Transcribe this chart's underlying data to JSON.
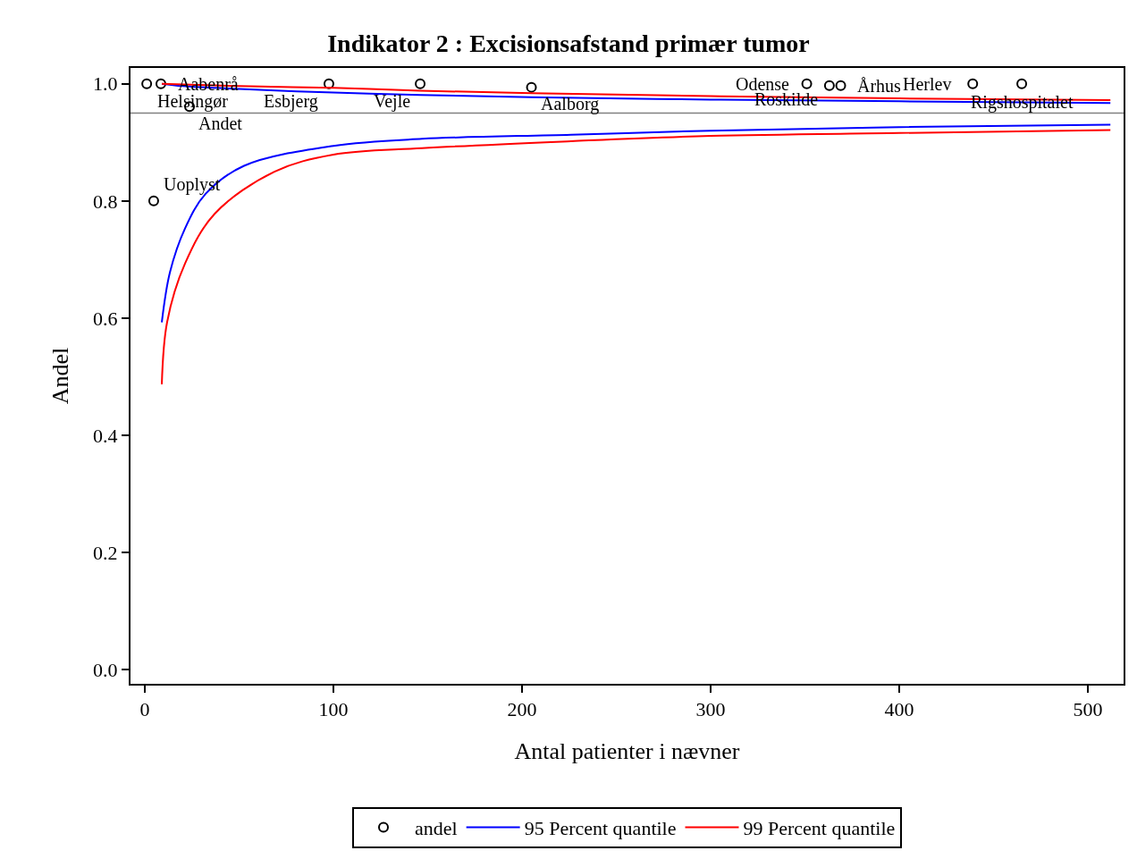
{
  "chart_data": {
    "type": "scatter",
    "title": "Indikator 2 : Excisionsafstand primær tumor",
    "xlabel": "Antal patienter i nævner",
    "ylabel": "Andel",
    "xlim": [
      -7.6,
      519
    ],
    "xticks": [
      0,
      100,
      200,
      300,
      400,
      500
    ],
    "ylim": [
      -0.024,
      1.027
    ],
    "yticks": [
      {
        "value": 0,
        "label": "0.0"
      },
      0.2,
      0.4,
      0.6,
      0.8,
      {
        "value": 1,
        "label": "1.0"
      }
    ],
    "series": [
      {
        "name": "andel",
        "marker": "circle",
        "color": "#000000",
        "x": [
          1,
          8.5,
          23.7,
          4.7,
          97.6,
          146,
          205,
          351,
          363,
          369,
          439,
          465
        ],
        "values": [
          1.0,
          1.0,
          0.961,
          0.8,
          1.0,
          1.0,
          0.994,
          1.0,
          0.997,
          0.997,
          1.0,
          1.0
        ]
      },
      {
        "name": "95 Percent quantile",
        "type": "line",
        "color": "#0000ff",
        "x": [
          9,
          13.3,
          21.3,
          32.2,
          52.6,
          100,
          147,
          226,
          300,
          400,
          512
        ],
        "values": [
          0.593,
          0.678,
          0.753,
          0.812,
          0.86,
          0.894,
          0.906,
          0.913,
          0.92,
          0.926,
          0.93
        ]
      },
      {
        "type": "line",
        "color": "#0000ff",
        "x": [
          9,
          20,
          50,
          100,
          146,
          205,
          300,
          400,
          512
        ],
        "values": [
          1.0,
          0.996,
          0.991,
          0.985,
          0.981,
          0.977,
          0.973,
          0.97,
          0.967
        ]
      },
      {
        "name": "99 Percent quantile",
        "type": "line",
        "color": "#ff0000",
        "x": [
          9,
          11.8,
          21.3,
          37,
          68.7,
          100,
          147,
          226,
          300,
          400,
          512
        ],
        "values": [
          0.487,
          0.593,
          0.693,
          0.778,
          0.85,
          0.879,
          0.89,
          0.902,
          0.911,
          0.916,
          0.921
        ]
      },
      {
        "type": "line",
        "color": "#ff0000",
        "x": [
          9,
          50,
          100,
          146,
          205,
          300,
          400,
          512
        ],
        "values": [
          1.0,
          0.996,
          0.993,
          0.988,
          0.984,
          0.979,
          0.975,
          0.972
        ]
      }
    ],
    "ref_lines": [
      {
        "axis": "y",
        "value": 0.95,
        "color": "#808080"
      }
    ],
    "annotations": [
      {
        "text": "Helsingør",
        "x": 1,
        "y": 1.0
      },
      {
        "text": "Aabenrå",
        "x": 8.5,
        "y": 1.0
      },
      {
        "text": "Andet",
        "x": 23.7,
        "y": 0.961
      },
      {
        "text": "Uoplyst",
        "x": 4.7,
        "y": 0.8
      },
      {
        "text": "Esbjerg",
        "x": 97.6,
        "y": 1.0
      },
      {
        "text": "Vejle",
        "x": 146,
        "y": 1.0
      },
      {
        "text": "Aalborg",
        "x": 205,
        "y": 0.994
      },
      {
        "text": "Odense",
        "x": 351,
        "y": 1.0
      },
      {
        "text": "Roskilde",
        "x": 363,
        "y": 0.997
      },
      {
        "text": "Århus",
        "x": 369,
        "y": 0.997
      },
      {
        "text": "Herlev",
        "x": 439,
        "y": 1.0
      },
      {
        "text": "Rigshospitalet",
        "x": 465,
        "y": 1.0
      }
    ],
    "grid": false,
    "legend": "bottom"
  }
}
